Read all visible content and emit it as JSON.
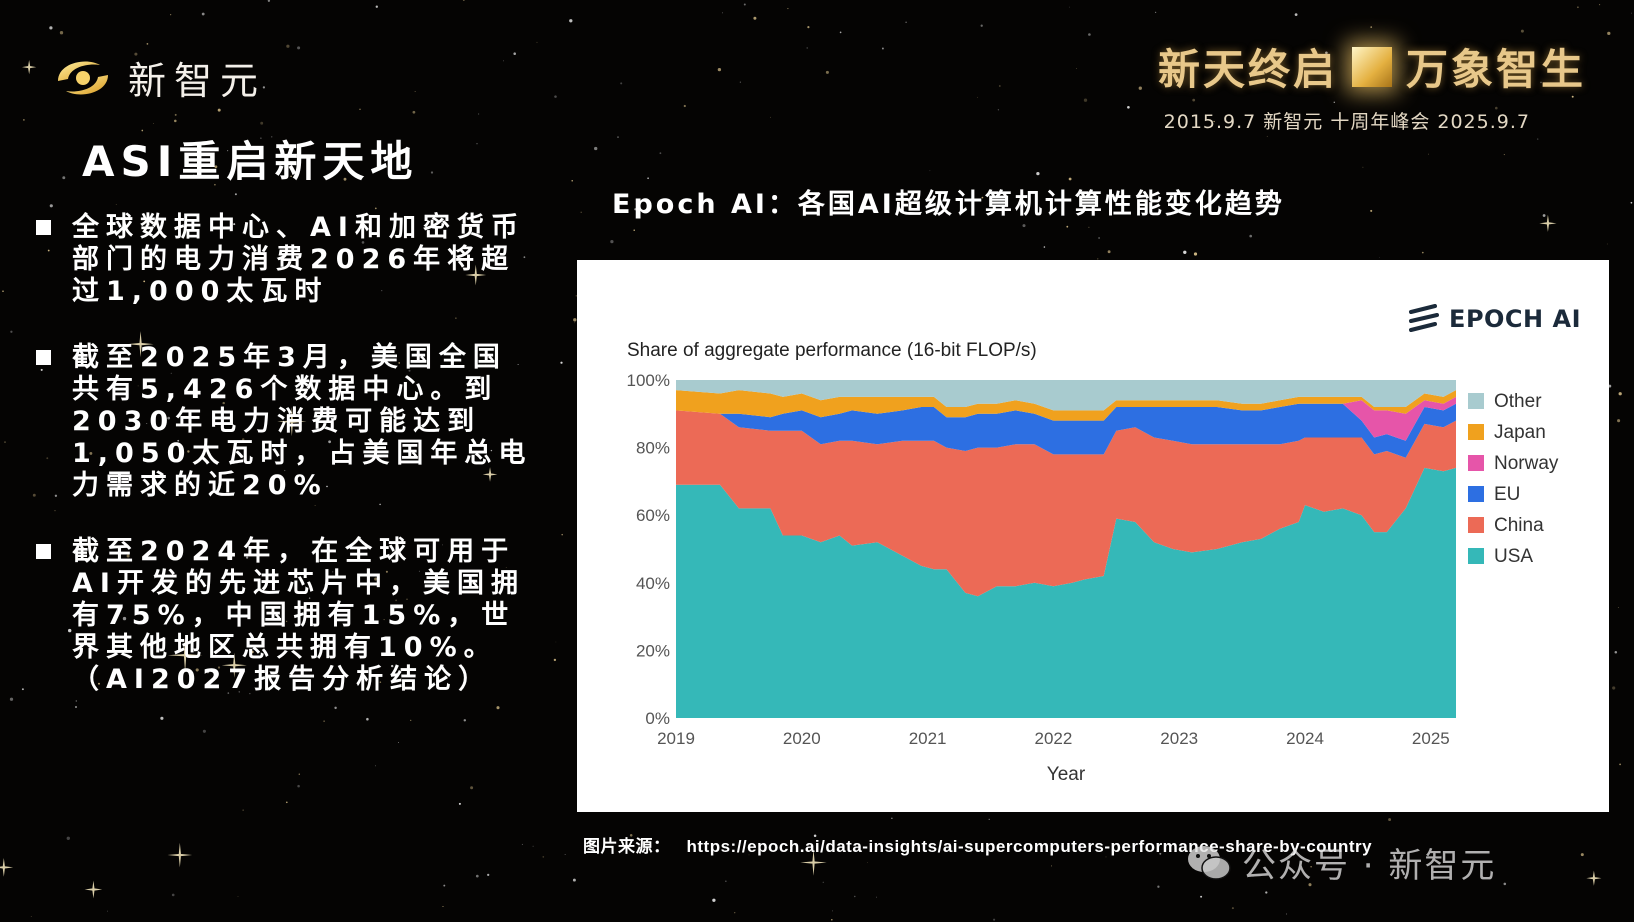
{
  "brand": {
    "name": "新智元"
  },
  "banner": {
    "title_left": "新天终启",
    "title_right": "万象智生",
    "subtitle": "2015.9.7 新智元 十周年峰会 2025.9.7"
  },
  "slide": {
    "title": "ASI重启新天地",
    "bullets": [
      "全球数据中心、AI和加密货币部门的电力消费2026年将超过1,000太瓦时",
      "截至2025年3月，美国全国共有5,426个数据中心。到2030年电力消费可能达到1,050太瓦时，占美国年总电力需求的近20%",
      "截至2024年，在全球可用于AI开发的先进芯片中，美国拥有75%，中国拥有15%，世界其他地区总共拥有10%。（AI2027报告分析结论）"
    ],
    "chart_heading": "Epoch AI：各国AI超级计算机计算性能变化趋势",
    "source_label": "图片来源：",
    "source_url": "https://epoch.ai/data-insights/ai-supercomputers-performance-share-by-country",
    "watermark": "公众号 · 新智元"
  },
  "epoch_logo": "EPOCH AI",
  "chart_data": {
    "type": "area",
    "stacked": true,
    "title": "Share of aggregate performance (16-bit FLOP/s)",
    "xlabel": "Year",
    "ylabel": "",
    "xlim": [
      2019.0,
      2025.2
    ],
    "ylim": [
      0,
      100
    ],
    "x_ticks": [
      "2019",
      "2020",
      "2021",
      "2022",
      "2023",
      "2024",
      "2025"
    ],
    "y_ticks": [
      "0%",
      "20%",
      "40%",
      "60%",
      "80%",
      "100%"
    ],
    "legend_position": "right",
    "x": [
      2019.0,
      2019.35,
      2019.5,
      2019.75,
      2019.85,
      2020.0,
      2020.15,
      2020.3,
      2020.4,
      2020.6,
      2020.8,
      2020.95,
      2021.05,
      2021.15,
      2021.3,
      2021.4,
      2021.55,
      2021.7,
      2021.85,
      2022.0,
      2022.15,
      2022.25,
      2022.4,
      2022.5,
      2022.65,
      2022.8,
      2022.95,
      2023.1,
      2023.3,
      2023.5,
      2023.65,
      2023.8,
      2023.95,
      2024.0,
      2024.15,
      2024.3,
      2024.45,
      2024.55,
      2024.65,
      2024.8,
      2024.95,
      2025.1,
      2025.2
    ],
    "series": [
      {
        "name": "USA",
        "color": "#35b8b8",
        "values": [
          69,
          69,
          62,
          62,
          54,
          54,
          52,
          54,
          51,
          52,
          48,
          45,
          44,
          44,
          37,
          36,
          39,
          39,
          40,
          39,
          40,
          41,
          42,
          59,
          58,
          52,
          50,
          49,
          50,
          52,
          53,
          56,
          58,
          63,
          61,
          62,
          60,
          55,
          55,
          62,
          74,
          73,
          74
        ]
      },
      {
        "name": "China",
        "color": "#ec6a56",
        "values": [
          22,
          21,
          24,
          23,
          31,
          31,
          29,
          28,
          31,
          29,
          34,
          37,
          38,
          36,
          42,
          44,
          41,
          42,
          41,
          39,
          38,
          37,
          36,
          26,
          28,
          31,
          32,
          32,
          31,
          29,
          28,
          25,
          24,
          20,
          22,
          21,
          23,
          23,
          24,
          15,
          13,
          13,
          14
        ]
      },
      {
        "name": "EU",
        "color": "#2d6fe2",
        "values": [
          0,
          0,
          4,
          4,
          5,
          6,
          8,
          8,
          9,
          9,
          9,
          10,
          10,
          9,
          10,
          10,
          10,
          10,
          9,
          10,
          10,
          10,
          10,
          7,
          6,
          9,
          10,
          11,
          11,
          10,
          10,
          11,
          11,
          10,
          10,
          10,
          5,
          5,
          5,
          5,
          5,
          5,
          5
        ]
      },
      {
        "name": "Norway",
        "color": "#e655a9",
        "values": [
          0,
          0,
          0,
          0,
          0,
          0,
          0,
          0,
          0,
          0,
          0,
          0,
          0,
          0,
          0,
          0,
          0,
          0,
          0,
          0,
          0,
          0,
          0,
          0,
          0,
          0,
          0,
          0,
          0,
          0,
          0,
          0,
          0,
          0,
          0,
          0,
          6,
          8,
          7,
          8,
          2,
          2,
          2
        ]
      },
      {
        "name": "Japan",
        "color": "#f0a11e",
        "values": [
          6,
          6,
          7,
          7,
          5,
          5,
          5,
          5,
          4,
          5,
          4,
          3,
          3,
          3,
          3,
          3,
          3,
          3,
          3,
          3,
          3,
          3,
          3,
          2,
          2,
          2,
          2,
          2,
          2,
          2,
          2,
          2,
          2,
          2,
          2,
          2,
          1,
          1,
          1,
          2,
          2,
          2,
          2
        ]
      },
      {
        "name": "Other",
        "color": "#a8cbcf",
        "values": [
          3,
          4,
          3,
          4,
          5,
          4,
          6,
          5,
          5,
          5,
          5,
          5,
          5,
          8,
          8,
          7,
          7,
          6,
          7,
          9,
          9,
          9,
          9,
          6,
          6,
          6,
          6,
          6,
          6,
          7,
          7,
          6,
          5,
          5,
          5,
          5,
          5,
          8,
          8,
          8,
          4,
          5,
          3
        ]
      }
    ],
    "legend_order": [
      "Other",
      "Japan",
      "Norway",
      "EU",
      "China",
      "USA"
    ]
  }
}
